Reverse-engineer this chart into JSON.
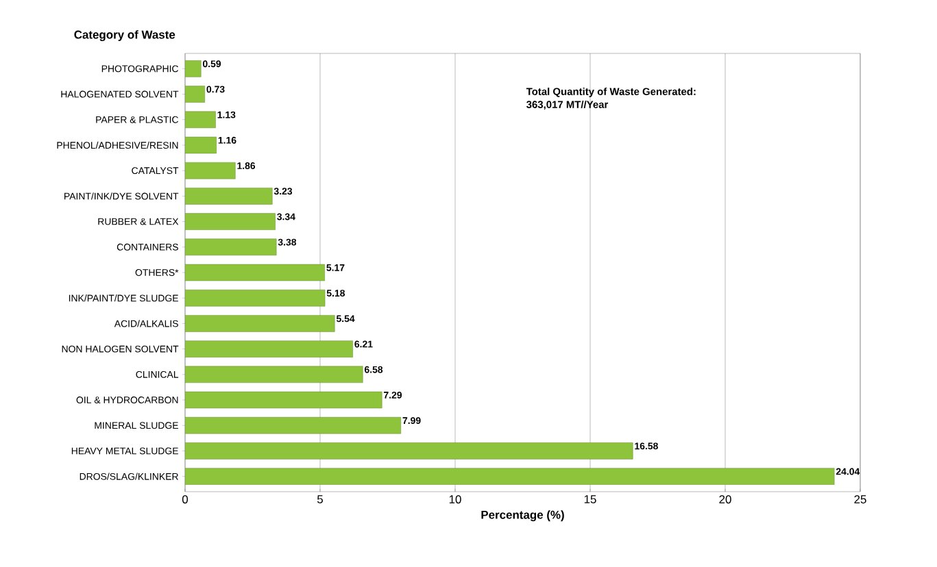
{
  "chart_data": {
    "type": "bar",
    "orientation": "horizontal",
    "ylabel": "Category of Waste",
    "xlabel": "Percentage (%)",
    "annotations": [
      "Total Quantity of Waste Generated:",
      "363,017 MT//Year"
    ],
    "categories": [
      "PHOTOGRAPHIC",
      "HALOGENATED SOLVENT",
      "PAPER & PLASTIC",
      "PHENOL/ADHESIVE/RESIN",
      "CATALYST",
      "PAINT/INK/DYE SOLVENT",
      "RUBBER & LATEX",
      "CONTAINERS",
      "OTHERS*",
      "INK/PAINT/DYE SLUDGE",
      "ACID/ALKALIS",
      "NON HALOGEN SOLVENT",
      "CLINICAL",
      "OIL & HYDROCARBON",
      "MINERAL SLUDGE",
      "HEAVY METAL SLUDGE",
      "DROS/SLAG/KLINKER"
    ],
    "values": [
      0.59,
      0.73,
      1.13,
      1.16,
      1.86,
      3.23,
      3.34,
      3.38,
      5.17,
      5.18,
      5.54,
      6.21,
      6.58,
      7.29,
      7.99,
      16.58,
      24.04
    ],
    "color": "#8dc43c",
    "data_labels": true,
    "grid": "x",
    "xlim": [
      0,
      25
    ],
    "xticks": [
      0,
      5,
      10,
      15,
      20,
      25
    ]
  }
}
